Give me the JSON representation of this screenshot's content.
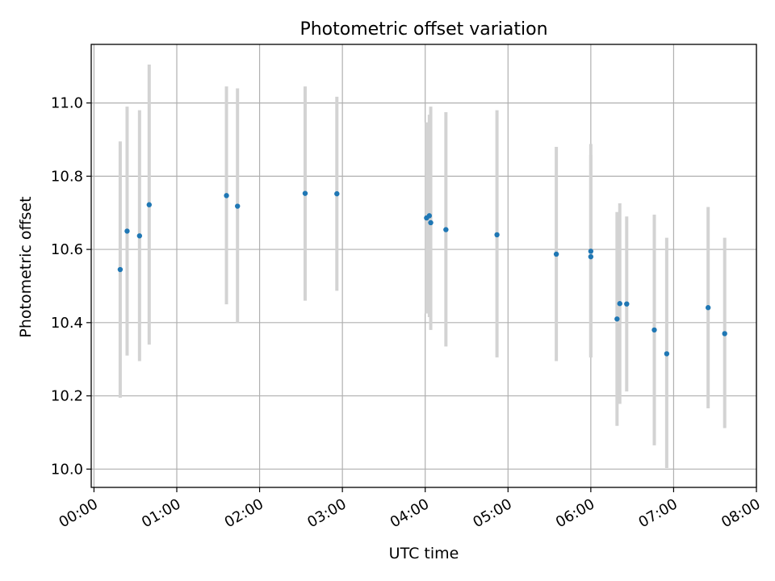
{
  "chart_data": {
    "type": "scatter",
    "title": "Photometric offset variation",
    "xlabel": "UTC time",
    "ylabel": "Photometric offset",
    "x_ticks": [
      "00:00",
      "01:00",
      "02:00",
      "03:00",
      "04:00",
      "05:00",
      "06:00",
      "07:00",
      "08:00"
    ],
    "y_ticks": [
      "10.0",
      "10.2",
      "10.4",
      "10.6",
      "10.8",
      "11.0"
    ],
    "xlim": [
      "23:58",
      "08:00"
    ],
    "ylim": [
      9.95,
      11.16
    ],
    "grid": true,
    "colors": {
      "points": "#1f77b4",
      "error_bars": "#d3d3d3",
      "grid": "#b0b0b0",
      "axes": "#000000"
    },
    "series": [
      {
        "points": [
          {
            "x": "00:19",
            "y": 10.545,
            "ylow": 10.195,
            "yhigh": 10.895
          },
          {
            "x": "00:24",
            "y": 10.65,
            "ylow": 10.31,
            "yhigh": 10.99
          },
          {
            "x": "00:33",
            "y": 10.637,
            "ylow": 10.295,
            "yhigh": 10.98
          },
          {
            "x": "00:40",
            "y": 10.722,
            "ylow": 10.34,
            "yhigh": 11.105
          },
          {
            "x": "01:36",
            "y": 10.747,
            "ylow": 10.45,
            "yhigh": 11.045
          },
          {
            "x": "01:44",
            "y": 10.718,
            "ylow": 10.4,
            "yhigh": 11.04
          },
          {
            "x": "02:33",
            "y": 10.753,
            "ylow": 10.46,
            "yhigh": 11.045
          },
          {
            "x": "02:56",
            "y": 10.752,
            "ylow": 10.487,
            "yhigh": 11.017
          },
          {
            "x": "04:01",
            "y": 10.686,
            "ylow": 10.425,
            "yhigh": 10.947
          },
          {
            "x": "04:03",
            "y": 10.692,
            "ylow": 10.415,
            "yhigh": 10.968
          },
          {
            "x": "04:04",
            "y": 10.673,
            "ylow": 10.38,
            "yhigh": 10.99
          },
          {
            "x": "04:15",
            "y": 10.654,
            "ylow": 10.335,
            "yhigh": 10.975
          },
          {
            "x": "04:52",
            "y": 10.64,
            "ylow": 10.305,
            "yhigh": 10.98
          },
          {
            "x": "05:35",
            "y": 10.587,
            "ylow": 10.295,
            "yhigh": 10.88
          },
          {
            "x": "06:00",
            "y": 10.595,
            "ylow": 10.305,
            "yhigh": 10.888
          },
          {
            "x": "06:00",
            "y": 10.58,
            "ylow": 10.305,
            "yhigh": 10.858
          },
          {
            "x": "06:19",
            "y": 10.41,
            "ylow": 10.118,
            "yhigh": 10.702
          },
          {
            "x": "06:21",
            "y": 10.452,
            "ylow": 10.178,
            "yhigh": 10.726
          },
          {
            "x": "06:26",
            "y": 10.451,
            "ylow": 10.212,
            "yhigh": 10.69
          },
          {
            "x": "06:46",
            "y": 10.38,
            "ylow": 10.065,
            "yhigh": 10.695
          },
          {
            "x": "06:55",
            "y": 10.315,
            "ylow": 10.003,
            "yhigh": 10.632
          },
          {
            "x": "07:25",
            "y": 10.441,
            "ylow": 10.166,
            "yhigh": 10.716
          },
          {
            "x": "07:37",
            "y": 10.37,
            "ylow": 10.112,
            "yhigh": 10.632
          }
        ]
      }
    ]
  }
}
